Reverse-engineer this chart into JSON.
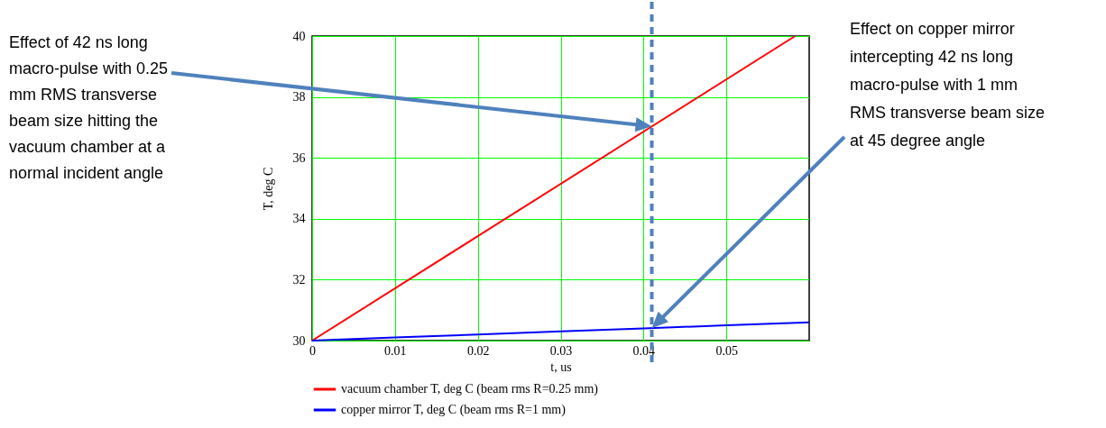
{
  "chart_data": {
    "type": "line",
    "xlabel": "t, us",
    "ylabel": "T, deg C",
    "xlim": [
      0,
      0.06
    ],
    "xticks": [
      0,
      0.01,
      0.02,
      0.03,
      0.04,
      0.05
    ],
    "ylim": [
      30,
      40
    ],
    "yticks": [
      30,
      32,
      34,
      36,
      38,
      40
    ],
    "series": [
      {
        "name": "vacuum chamber T, deg C (beam rms R=0.25 mm)",
        "color": "#ff0000",
        "x": [
          0,
          0.0583
        ],
        "values": [
          30,
          40
        ]
      },
      {
        "name": "copper mirror T, deg C (beam rms R=1 mm)",
        "color": "#0000ff",
        "x": [
          0,
          0.01,
          0.02,
          0.03,
          0.04,
          0.05,
          0.06
        ],
        "values": [
          30,
          30.1,
          30.2,
          30.3,
          30.4,
          30.5,
          30.6
        ]
      }
    ],
    "ref_lines": [
      {
        "axis": "x",
        "value": 0.041,
        "color": "#4f81bd",
        "line_style": "dashed"
      }
    ],
    "annotations": [
      "Effect of 42 ns long macro-pulse with 0.25 mm RMS transverse beam size hitting the vacuum chamber at a normal incident angle",
      "Effect on copper mirror intercepting  42 ns long macro-pulse with 1 mm RMS transverse beam size at 45 degree angle"
    ],
    "grid": true,
    "legend": "bottom",
    "line_style": "solid",
    "marker": "none"
  }
}
